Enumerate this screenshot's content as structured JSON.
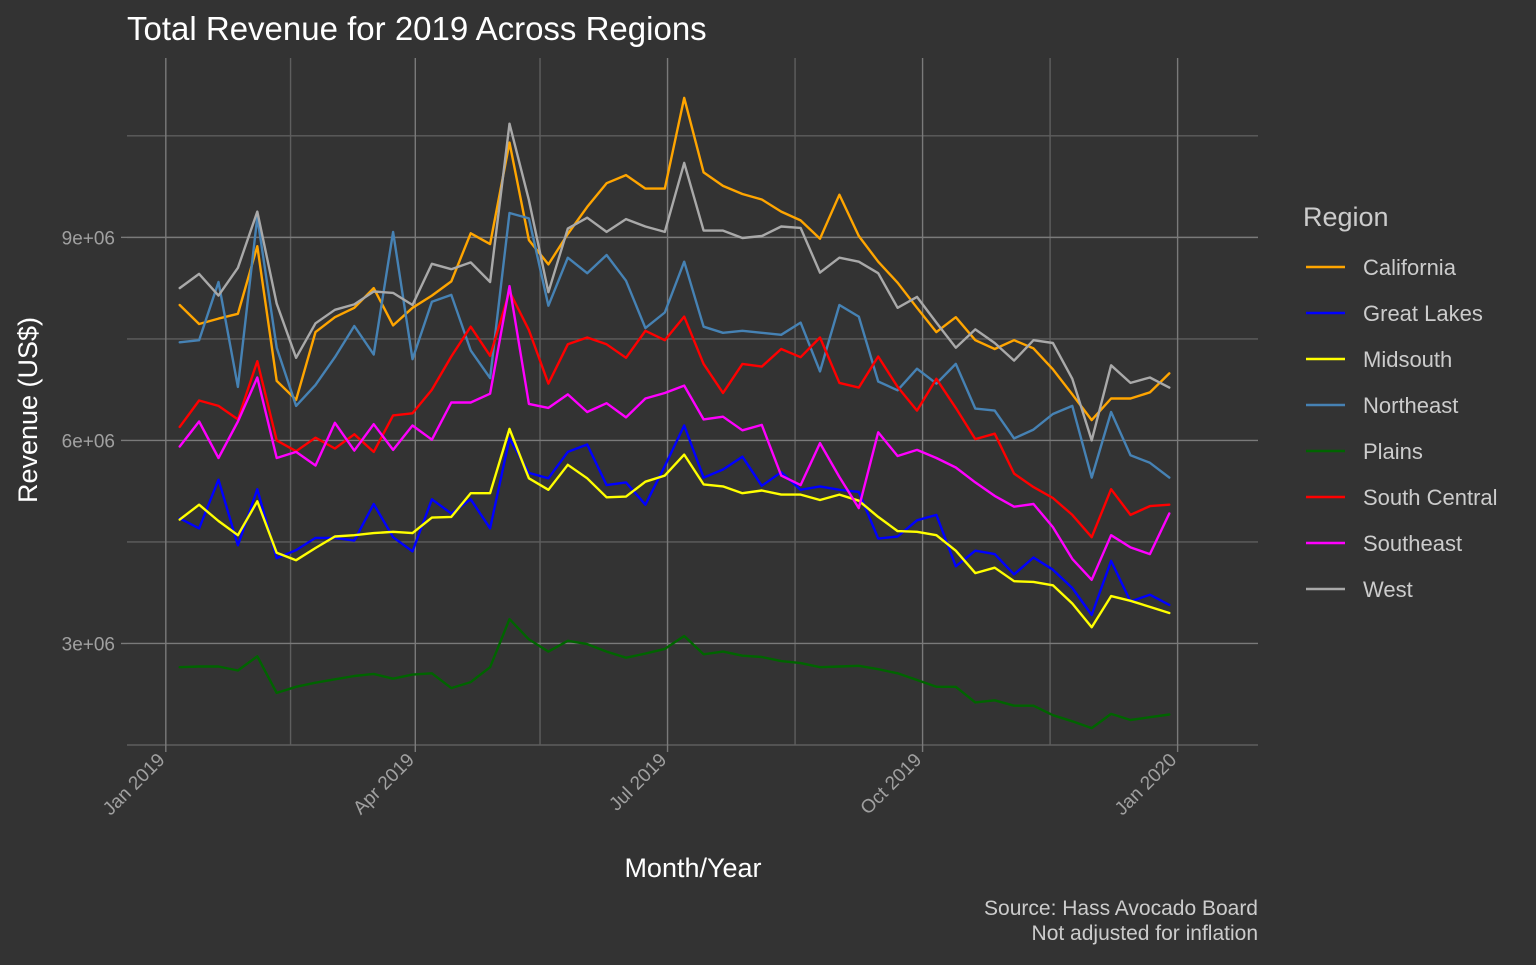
{
  "chart_data": {
    "type": "line",
    "title": "Total Revenue for 2019 Across Regions",
    "xlabel": "Month/Year",
    "ylabel": "Revenue (US$)",
    "caption": [
      "Source: Hass Avocado Board",
      "Not adjusted for inflation"
    ],
    "x_ticks": [
      {
        "label": "Jan 2019",
        "date": "2019-01-01"
      },
      {
        "label": "Apr 2019",
        "date": "2019-04-01"
      },
      {
        "label": "Jul 2019",
        "date": "2019-07-01"
      },
      {
        "label": "Oct 2019",
        "date": "2019-10-01"
      },
      {
        "label": "Jan 2020",
        "date": "2020-01-01"
      }
    ],
    "x_minor_dates": [
      "2019-02-15",
      "2019-05-16",
      "2019-08-16",
      "2019-11-16"
    ],
    "xlim": [
      "2018-12-18",
      "2020-01-30"
    ],
    "y_ticks": [
      {
        "label": "3e+06",
        "value": 3000000
      },
      {
        "label": "6e+06",
        "value": 6000000
      },
      {
        "label": "9e+06",
        "value": 9000000
      }
    ],
    "y_minor_values": [
      1500000,
      4500000,
      7500000,
      10500000
    ],
    "ylim": [
      1500000,
      11650000
    ],
    "grid": true,
    "legend": {
      "title": "Region",
      "position": "right"
    },
    "x_dates": [
      "2019-01-06",
      "2019-01-13",
      "2019-01-20",
      "2019-01-27",
      "2019-02-03",
      "2019-02-10",
      "2019-02-17",
      "2019-02-24",
      "2019-03-03",
      "2019-03-10",
      "2019-03-17",
      "2019-03-24",
      "2019-03-31",
      "2019-04-07",
      "2019-04-14",
      "2019-04-21",
      "2019-04-28",
      "2019-05-05",
      "2019-05-12",
      "2019-05-19",
      "2019-05-26",
      "2019-06-02",
      "2019-06-09",
      "2019-06-16",
      "2019-06-23",
      "2019-06-30",
      "2019-07-07",
      "2019-07-14",
      "2019-07-21",
      "2019-07-28",
      "2019-08-04",
      "2019-08-11",
      "2019-08-18",
      "2019-08-25",
      "2019-09-01",
      "2019-09-08",
      "2019-09-15",
      "2019-09-22",
      "2019-09-29",
      "2019-10-06",
      "2019-10-13",
      "2019-10-20",
      "2019-10-27",
      "2019-11-03",
      "2019-11-10",
      "2019-11-17",
      "2019-11-24",
      "2019-12-01",
      "2019-12-08",
      "2019-12-15",
      "2019-12-22",
      "2019-12-29"
    ],
    "series": [
      {
        "name": "California",
        "color": "#FFA500",
        "values": [
          8000000,
          7720000,
          7800000,
          7870000,
          8870000,
          6880000,
          6600000,
          7600000,
          7820000,
          7960000,
          8250000,
          7700000,
          7960000,
          8140000,
          8350000,
          9060000,
          8900000,
          10400000,
          8960000,
          8600000,
          9050000,
          9450000,
          9800000,
          9920000,
          9720000,
          9720000,
          11060000,
          9960000,
          9760000,
          9640000,
          9560000,
          9380000,
          9250000,
          8980000,
          9630000,
          9020000,
          8640000,
          8330000,
          7960000,
          7600000,
          7820000,
          7480000,
          7350000,
          7480000,
          7360000,
          7050000,
          6680000,
          6300000,
          6620000,
          6620000,
          6710000,
          6990000
        ]
      },
      {
        "name": "Great Lakes",
        "color": "#0000FF",
        "values": [
          4850000,
          4700000,
          5420000,
          4450000,
          5280000,
          4260000,
          4380000,
          4560000,
          4560000,
          4520000,
          5060000,
          4570000,
          4360000,
          5130000,
          4920000,
          5130000,
          4700000,
          6030000,
          5520000,
          5440000,
          5830000,
          5940000,
          5340000,
          5380000,
          5050000,
          5620000,
          6220000,
          5450000,
          5570000,
          5760000,
          5330000,
          5530000,
          5270000,
          5320000,
          5270000,
          5240000,
          4550000,
          4580000,
          4820000,
          4900000,
          4140000,
          4370000,
          4320000,
          4020000,
          4270000,
          4090000,
          3820000,
          3420000,
          4220000,
          3620000,
          3720000,
          3570000
        ]
      },
      {
        "name": "Midsouth",
        "color": "#FFFF00",
        "values": [
          4830000,
          5050000,
          4810000,
          4600000,
          5100000,
          4340000,
          4230000,
          4410000,
          4580000,
          4600000,
          4630000,
          4650000,
          4630000,
          4860000,
          4870000,
          5220000,
          5220000,
          6170000,
          5440000,
          5270000,
          5640000,
          5440000,
          5160000,
          5170000,
          5390000,
          5480000,
          5790000,
          5350000,
          5320000,
          5220000,
          5260000,
          5200000,
          5200000,
          5120000,
          5200000,
          5110000,
          4870000,
          4660000,
          4650000,
          4600000,
          4370000,
          4040000,
          4120000,
          3920000,
          3910000,
          3860000,
          3590000,
          3240000,
          3700000,
          3630000,
          3540000,
          3450000
        ]
      },
      {
        "name": "Northeast",
        "color": "#4682B4",
        "values": [
          7450000,
          7480000,
          8340000,
          6790000,
          9300000,
          7370000,
          6510000,
          6820000,
          7230000,
          7690000,
          7270000,
          9080000,
          7200000,
          8050000,
          8150000,
          7330000,
          6920000,
          9360000,
          9280000,
          7990000,
          8700000,
          8470000,
          8740000,
          8360000,
          7660000,
          7890000,
          8640000,
          7680000,
          7590000,
          7620000,
          7590000,
          7560000,
          7740000,
          7020000,
          8000000,
          7830000,
          6870000,
          6740000,
          7060000,
          6840000,
          7130000,
          6470000,
          6440000,
          6030000,
          6160000,
          6390000,
          6510000,
          5450000,
          6420000,
          5780000,
          5670000,
          5450000
        ]
      },
      {
        "name": "Plains",
        "color": "#006400",
        "values": [
          2650000,
          2660000,
          2660000,
          2600000,
          2810000,
          2270000,
          2360000,
          2420000,
          2470000,
          2520000,
          2550000,
          2480000,
          2540000,
          2560000,
          2340000,
          2430000,
          2650000,
          3360000,
          3060000,
          2880000,
          3040000,
          2990000,
          2880000,
          2790000,
          2850000,
          2920000,
          3110000,
          2840000,
          2880000,
          2820000,
          2800000,
          2740000,
          2710000,
          2650000,
          2660000,
          2670000,
          2620000,
          2560000,
          2460000,
          2360000,
          2360000,
          2130000,
          2160000,
          2080000,
          2080000,
          1940000,
          1850000,
          1750000,
          1960000,
          1870000,
          1910000,
          1950000
        ]
      },
      {
        "name": "South Central",
        "color": "#FF0000",
        "values": [
          6200000,
          6590000,
          6510000,
          6310000,
          7170000,
          6000000,
          5840000,
          6040000,
          5880000,
          6090000,
          5830000,
          6370000,
          6400000,
          6750000,
          7240000,
          7680000,
          7250000,
          8200000,
          7630000,
          6840000,
          7420000,
          7520000,
          7420000,
          7220000,
          7620000,
          7480000,
          7830000,
          7130000,
          6700000,
          7130000,
          7090000,
          7350000,
          7230000,
          7520000,
          6850000,
          6780000,
          7240000,
          6790000,
          6440000,
          6910000,
          6480000,
          6020000,
          6100000,
          5510000,
          5310000,
          5150000,
          4900000,
          4570000,
          5280000,
          4900000,
          5030000,
          5050000
        ]
      },
      {
        "name": "Southeast",
        "color": "#FF00FF",
        "values": [
          5910000,
          6280000,
          5740000,
          6280000,
          6930000,
          5740000,
          5830000,
          5630000,
          6260000,
          5850000,
          6240000,
          5860000,
          6220000,
          6010000,
          6560000,
          6560000,
          6690000,
          8280000,
          6540000,
          6480000,
          6680000,
          6420000,
          6550000,
          6340000,
          6620000,
          6700000,
          6810000,
          6310000,
          6350000,
          6150000,
          6230000,
          5480000,
          5340000,
          5960000,
          5460000,
          5000000,
          6120000,
          5770000,
          5860000,
          5740000,
          5600000,
          5380000,
          5180000,
          5020000,
          5060000,
          4720000,
          4250000,
          3940000,
          4600000,
          4420000,
          4320000,
          4920000
        ]
      },
      {
        "name": "West",
        "color": "#A9A9A9",
        "values": [
          8250000,
          8460000,
          8140000,
          8550000,
          9380000,
          8020000,
          7220000,
          7730000,
          7930000,
          8010000,
          8200000,
          8180000,
          8000000,
          8610000,
          8530000,
          8630000,
          8340000,
          10680000,
          9550000,
          8190000,
          9130000,
          9290000,
          9080000,
          9270000,
          9160000,
          9080000,
          10100000,
          9100000,
          9100000,
          8990000,
          9020000,
          9160000,
          9140000,
          8480000,
          8700000,
          8640000,
          8470000,
          7960000,
          8120000,
          7740000,
          7370000,
          7640000,
          7440000,
          7180000,
          7480000,
          7440000,
          6910000,
          6000000,
          7110000,
          6850000,
          6930000,
          6780000
        ]
      }
    ]
  }
}
